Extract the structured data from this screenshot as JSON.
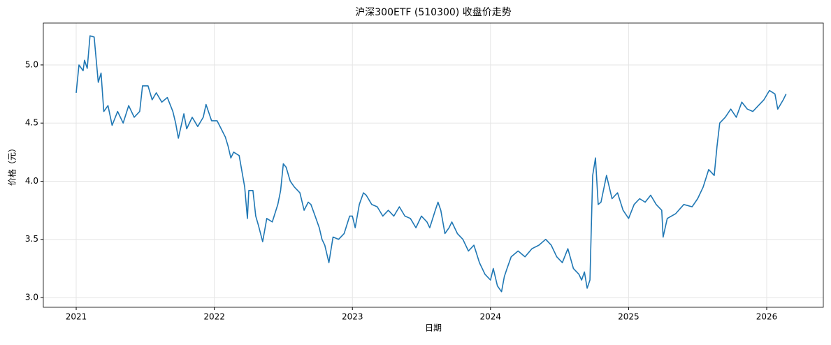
{
  "chart_data": {
    "type": "line",
    "title": "沪深300ETF (510300) 收盘价走势",
    "x_label": "日期",
    "y_label": "价格（元）",
    "x": [
      2021.0,
      2021.02,
      2021.05,
      2021.06,
      2021.08,
      2021.1,
      2021.13,
      2021.16,
      2021.18,
      2021.2,
      2021.23,
      2021.26,
      2021.3,
      2021.34,
      2021.38,
      2021.42,
      2021.46,
      2021.48,
      2021.52,
      2021.55,
      2021.58,
      2021.62,
      2021.66,
      2021.7,
      2021.72,
      2021.74,
      2021.78,
      2021.8,
      2021.84,
      2021.88,
      2021.92,
      2021.94,
      2021.98,
      2022.02,
      2022.05,
      2022.08,
      2022.1,
      2022.12,
      2022.14,
      2022.18,
      2022.22,
      2022.24,
      2022.25,
      2022.28,
      2022.3,
      2022.32,
      2022.35,
      2022.38,
      2022.42,
      2022.46,
      2022.48,
      2022.5,
      2022.52,
      2022.55,
      2022.58,
      2022.62,
      2022.65,
      2022.68,
      2022.7,
      2022.73,
      2022.76,
      2022.78,
      2022.8,
      2022.83,
      2022.86,
      2022.9,
      2022.94,
      2022.98,
      2023.0,
      2023.02,
      2023.05,
      2023.08,
      2023.1,
      2023.14,
      2023.18,
      2023.22,
      2023.26,
      2023.3,
      2023.34,
      2023.38,
      2023.42,
      2023.46,
      2023.5,
      2023.54,
      2023.56,
      2023.6,
      2023.62,
      2023.64,
      2023.67,
      2023.7,
      2023.72,
      2023.76,
      2023.8,
      2023.84,
      2023.88,
      2023.92,
      2023.96,
      2024.0,
      2024.02,
      2024.05,
      2024.08,
      2024.1,
      2024.12,
      2024.15,
      2024.2,
      2024.25,
      2024.3,
      2024.35,
      2024.4,
      2024.44,
      2024.48,
      2024.52,
      2024.56,
      2024.6,
      2024.64,
      2024.66,
      2024.68,
      2024.7,
      2024.72,
      2024.74,
      2024.76,
      2024.78,
      2024.8,
      2024.84,
      2024.88,
      2024.92,
      2024.96,
      2025.0,
      2025.04,
      2025.08,
      2025.12,
      2025.16,
      2025.2,
      2025.24,
      2025.25,
      2025.28,
      2025.34,
      2025.4,
      2025.46,
      2025.5,
      2025.54,
      2025.58,
      2025.62,
      2025.64,
      2025.66,
      2025.7,
      2025.74,
      2025.78,
      2025.82,
      2025.86,
      2025.9,
      2025.94,
      2025.98,
      2026.02,
      2026.06,
      2026.08,
      2026.12,
      2026.14
    ],
    "series": [
      {
        "color": "#1f77b4",
        "values": [
          4.76,
          5.0,
          4.95,
          5.04,
          4.97,
          5.25,
          5.24,
          4.85,
          4.93,
          4.6,
          4.65,
          4.48,
          4.6,
          4.5,
          4.65,
          4.55,
          4.6,
          4.82,
          4.82,
          4.7,
          4.76,
          4.68,
          4.72,
          4.6,
          4.5,
          4.37,
          4.58,
          4.45,
          4.55,
          4.47,
          4.55,
          4.66,
          4.52,
          4.52,
          4.45,
          4.38,
          4.3,
          4.2,
          4.25,
          4.22,
          3.95,
          3.68,
          3.92,
          3.92,
          3.7,
          3.62,
          3.48,
          3.68,
          3.65,
          3.8,
          3.92,
          4.15,
          4.12,
          4.0,
          3.95,
          3.9,
          3.75,
          3.82,
          3.8,
          3.7,
          3.6,
          3.5,
          3.45,
          3.3,
          3.52,
          3.5,
          3.55,
          3.7,
          3.7,
          3.6,
          3.8,
          3.9,
          3.88,
          3.8,
          3.78,
          3.7,
          3.75,
          3.7,
          3.78,
          3.7,
          3.68,
          3.6,
          3.7,
          3.65,
          3.6,
          3.75,
          3.82,
          3.75,
          3.55,
          3.6,
          3.65,
          3.55,
          3.5,
          3.4,
          3.45,
          3.3,
          3.2,
          3.15,
          3.25,
          3.1,
          3.05,
          3.18,
          3.25,
          3.35,
          3.4,
          3.35,
          3.42,
          3.45,
          3.5,
          3.45,
          3.35,
          3.3,
          3.42,
          3.25,
          3.2,
          3.15,
          3.22,
          3.08,
          3.15,
          4.05,
          4.2,
          3.8,
          3.82,
          4.05,
          3.85,
          3.9,
          3.75,
          3.68,
          3.8,
          3.85,
          3.82,
          3.88,
          3.8,
          3.75,
          3.52,
          3.68,
          3.72,
          3.8,
          3.78,
          3.85,
          3.95,
          4.1,
          4.05,
          4.3,
          4.5,
          4.55,
          4.62,
          4.55,
          4.68,
          4.62,
          4.6,
          4.65,
          4.7,
          4.78,
          4.75,
          4.62,
          4.7,
          4.75
        ]
      }
    ],
    "xlim": [
      2020.762,
      2026.41
    ],
    "xticks": [
      2021,
      2022,
      2023,
      2024,
      2025,
      2026
    ],
    "ylim": [
      2.916,
      5.36
    ],
    "yticks": [
      {
        "value": 3,
        "label": "3.0"
      },
      {
        "value": 3.5,
        "label": "3.5"
      },
      {
        "value": 4,
        "label": "4.0"
      },
      {
        "value": 4.5,
        "label": "4.5"
      },
      {
        "value": 5,
        "label": "5.0"
      }
    ],
    "grid": true
  }
}
